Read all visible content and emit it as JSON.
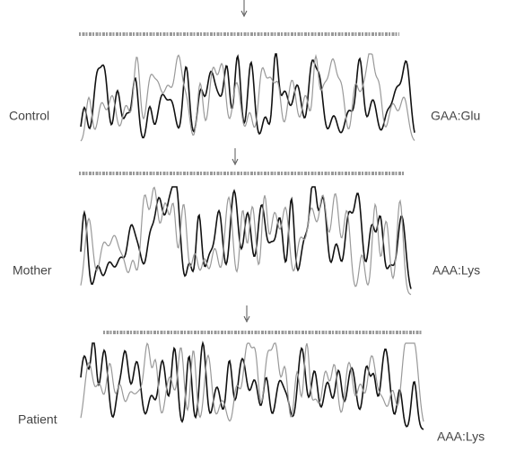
{
  "panels": [
    {
      "label": "Control",
      "genotype": "GAA:Glu"
    },
    {
      "label": "Mother",
      "genotype": "AAA:Lys"
    },
    {
      "label": "Patient",
      "genotype": "AAA:Lys"
    }
  ]
}
